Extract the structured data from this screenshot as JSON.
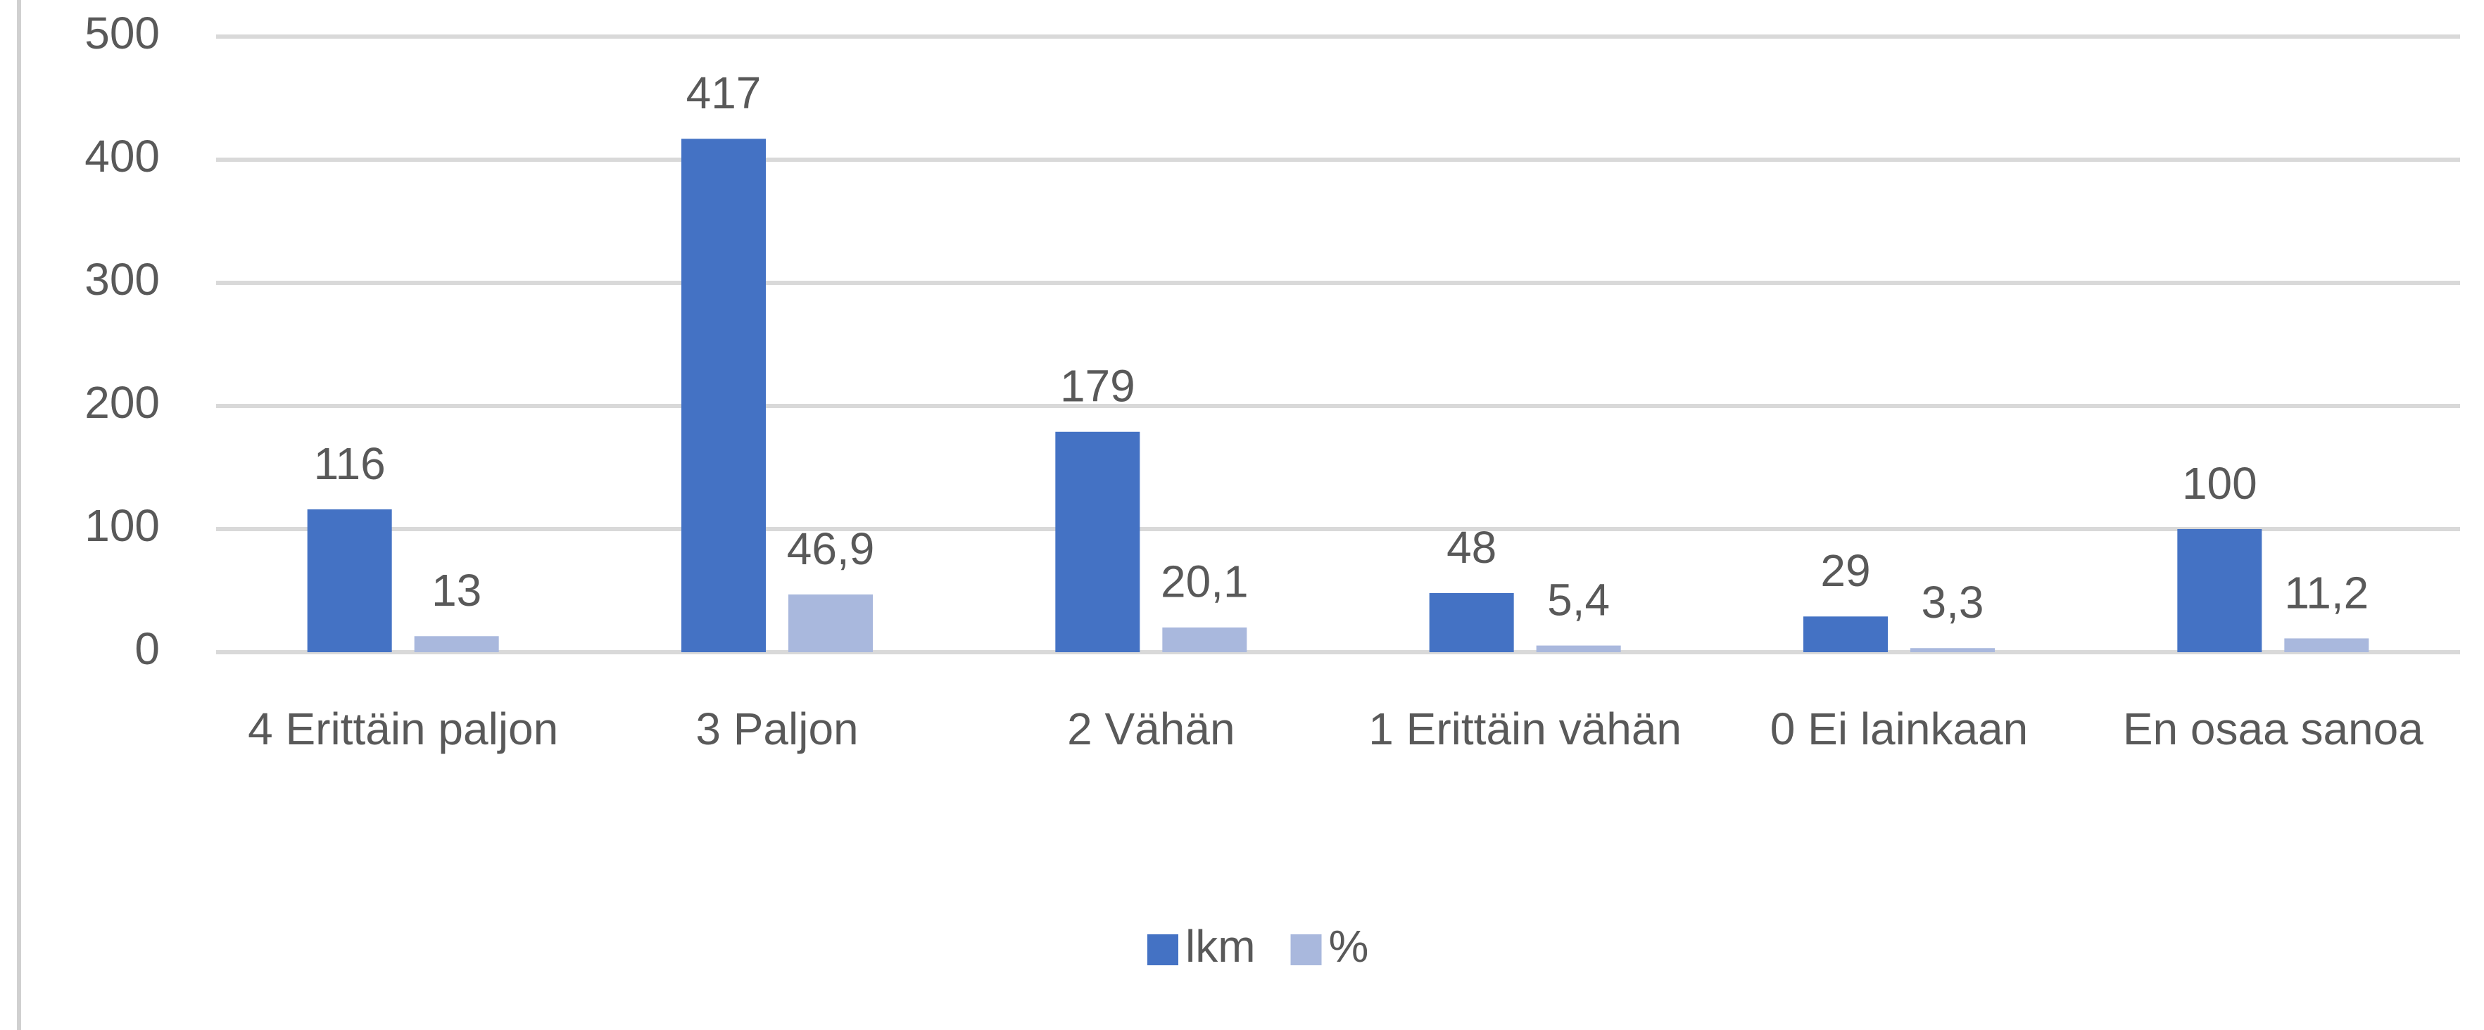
{
  "chart_data": {
    "type": "bar",
    "categories": [
      "4 Erittäin paljon",
      "3 Paljon",
      "2 Vähän",
      "1 Erittäin vähän",
      "0 Ei lainkaan",
      "En osaa sanoa"
    ],
    "series": [
      {
        "name": "lkm",
        "color": "#4472c4",
        "values": [
          116,
          417,
          179,
          48,
          29,
          100
        ]
      },
      {
        "name": "%",
        "color": "#a9b8dd",
        "values": [
          13,
          46.9,
          20.1,
          5.4,
          3.3,
          11.2
        ],
        "value_labels": [
          "13",
          "46,9",
          "20,1",
          "5,4",
          "3,3",
          "11,2"
        ]
      }
    ],
    "ylim": [
      0,
      500
    ],
    "yticks": [
      0,
      100,
      200,
      300,
      400,
      500
    ],
    "grid": true,
    "legend": "bottom"
  }
}
